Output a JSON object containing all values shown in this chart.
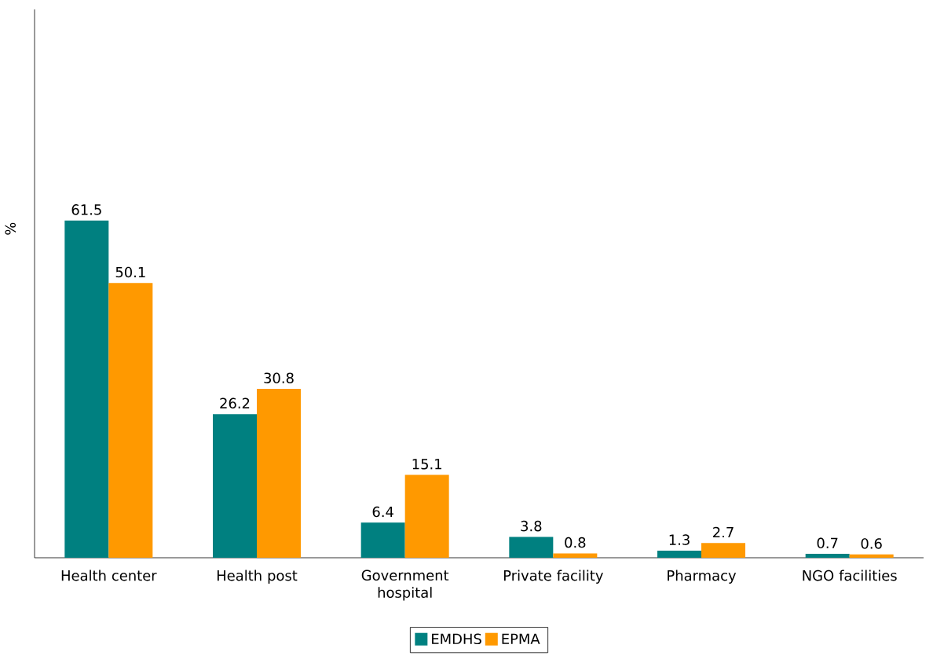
{
  "chart_data": {
    "type": "bar",
    "ylabel": "%",
    "categories": [
      "Health center",
      "Health post",
      "Government hospital",
      "Private facility",
      "Pharmacy",
      "NGO facilities"
    ],
    "series": [
      {
        "name": "EMDHS",
        "color": "#008080",
        "values": [
          61.5,
          26.2,
          6.4,
          3.8,
          1.3,
          0.7
        ]
      },
      {
        "name": "EPMA",
        "color": "#ff9900",
        "values": [
          50.1,
          30.8,
          15.1,
          0.8,
          2.7,
          0.6
        ]
      }
    ],
    "ylim": [
      0,
      100
    ],
    "data_labels": true,
    "legend": "bottom",
    "tick_labels": "x",
    "grid": false
  }
}
